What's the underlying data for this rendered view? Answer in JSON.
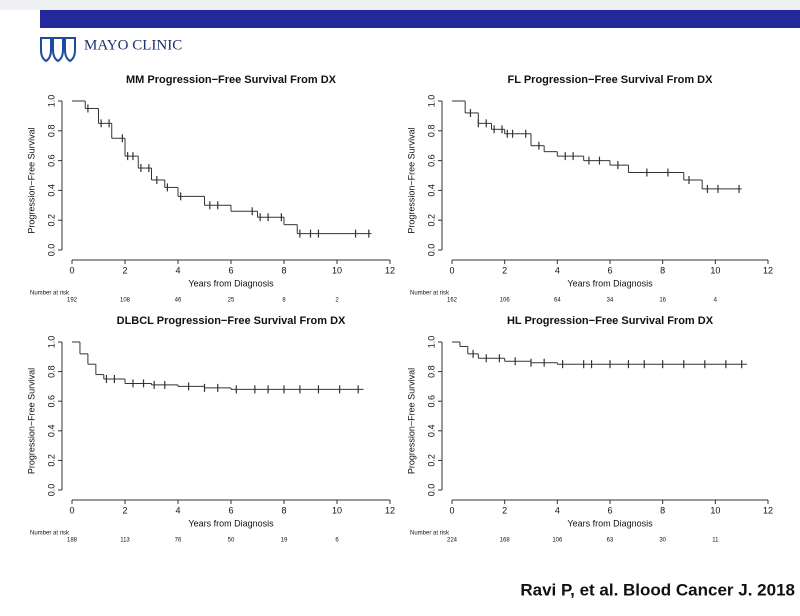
{
  "header": {
    "logo_text": "MAYO CLINIC"
  },
  "citation": "Ravi P, et al. Blood Cancer J. 2018",
  "chart_data": [
    {
      "type": "line",
      "step": true,
      "title": "MM Progression−Free Survival From DX",
      "xlabel": "Years from Diagnosis",
      "ylabel": "Progression−Free Survival",
      "xlim": [
        0,
        12
      ],
      "ylim": [
        0,
        1
      ],
      "xticks": [
        0,
        2,
        4,
        6,
        8,
        10,
        12
      ],
      "yticks": [
        {
          "value": 0,
          "label": "0.0"
        },
        0.2,
        0.4,
        0.6,
        0.8,
        {
          "value": 1,
          "label": "1.0"
        }
      ],
      "series": [
        {
          "color": "#333333",
          "x": [
            0,
            0.5,
            1,
            1.5,
            2,
            2.5,
            3,
            3.5,
            4,
            5,
            6,
            7,
            8,
            8.5,
            11.3
          ],
          "values": [
            1,
            0.95,
            0.85,
            0.75,
            0.63,
            0.55,
            0.47,
            0.42,
            0.36,
            0.3,
            0.26,
            0.22,
            0.17,
            0.11,
            0.11
          ]
        }
      ],
      "censor_x": [
        0.6,
        1.1,
        1.4,
        1.9,
        2.1,
        2.3,
        2.6,
        2.9,
        3.2,
        3.6,
        4.1,
        5.2,
        5.5,
        6.8,
        7.1,
        7.4,
        7.9,
        8.6,
        9,
        9.3,
        10.7,
        11.2
      ],
      "risk_label": "Number at risk",
      "at_risk": [
        192,
        108,
        46,
        25,
        8,
        2
      ]
    },
    {
      "type": "line",
      "step": true,
      "title": "FL Progression−Free Survival From DX",
      "xlabel": "Years from Diagnosis",
      "ylabel": "Progression−Free Survival",
      "xlim": [
        0,
        12
      ],
      "ylim": [
        0,
        1
      ],
      "xticks": [
        0,
        2,
        4,
        6,
        8,
        10,
        12
      ],
      "yticks": [
        {
          "value": 0,
          "label": "0.0"
        },
        0.2,
        0.4,
        0.6,
        0.8,
        {
          "value": 1,
          "label": "1.0"
        }
      ],
      "series": [
        {
          "color": "#333333",
          "x": [
            0,
            0.5,
            1,
            1.5,
            2,
            3,
            3.5,
            4,
            5,
            6,
            6.7,
            8.8,
            9.5,
            11
          ],
          "values": [
            1,
            0.92,
            0.85,
            0.81,
            0.78,
            0.7,
            0.66,
            0.63,
            0.6,
            0.57,
            0.52,
            0.47,
            0.41,
            0.41
          ]
        }
      ],
      "censor_x": [
        0.7,
        1,
        1.3,
        1.6,
        1.9,
        2.1,
        2.3,
        2.8,
        3.3,
        4.3,
        4.6,
        5.2,
        5.6,
        6.3,
        7.4,
        8.2,
        9,
        9.7,
        10.1,
        10.9
      ],
      "risk_label": "Number at risk",
      "at_risk": [
        162,
        106,
        64,
        34,
        16,
        4
      ]
    },
    {
      "type": "line",
      "step": true,
      "title": "DLBCL Progression−Free Survival From DX",
      "xlabel": "Years from Diagnosis",
      "ylabel": "Progression−Free Survival",
      "xlim": [
        0,
        12
      ],
      "ylim": [
        0,
        1
      ],
      "xticks": [
        0,
        2,
        4,
        6,
        8,
        10,
        12
      ],
      "yticks": [
        {
          "value": 0,
          "label": "0.0"
        },
        0.2,
        0.4,
        0.6,
        0.8,
        {
          "value": 1,
          "label": "1.0"
        }
      ],
      "series": [
        {
          "color": "#333333",
          "x": [
            0,
            0.3,
            0.6,
            0.9,
            1.2,
            2,
            3,
            4,
            5,
            6,
            11
          ],
          "values": [
            1,
            0.92,
            0.85,
            0.78,
            0.75,
            0.72,
            0.71,
            0.7,
            0.69,
            0.68,
            0.68
          ]
        }
      ],
      "censor_x": [
        1.3,
        1.6,
        2.3,
        2.7,
        3.1,
        3.5,
        4.4,
        5,
        5.5,
        6.2,
        6.9,
        7.4,
        8,
        8.6,
        9.3,
        10.1,
        10.8
      ],
      "risk_label": "Number at risk",
      "at_risk": [
        188,
        113,
        76,
        50,
        19,
        6
      ]
    },
    {
      "type": "line",
      "step": true,
      "title": "HL Progression−Free Survival From DX",
      "xlabel": "Years from Diagnosis",
      "ylabel": "Progression−Free Survival",
      "xlim": [
        0,
        12
      ],
      "ylim": [
        0,
        1
      ],
      "xticks": [
        0,
        2,
        4,
        6,
        8,
        10,
        12
      ],
      "yticks": [
        {
          "value": 0,
          "label": "0.0"
        },
        0.2,
        0.4,
        0.6,
        0.8,
        {
          "value": 1,
          "label": "1.0"
        }
      ],
      "series": [
        {
          "color": "#333333",
          "x": [
            0,
            0.3,
            0.6,
            1,
            2,
            3,
            4,
            11.2
          ],
          "values": [
            1,
            0.97,
            0.92,
            0.89,
            0.87,
            0.86,
            0.85,
            0.85
          ]
        }
      ],
      "censor_x": [
        0.8,
        1.3,
        1.8,
        2.4,
        3,
        3.5,
        4.2,
        5,
        5.3,
        6,
        6.7,
        7.3,
        8,
        8.8,
        9.6,
        10.4,
        11
      ],
      "risk_label": "Number at risk",
      "at_risk": [
        224,
        168,
        106,
        63,
        30,
        11
      ]
    }
  ]
}
